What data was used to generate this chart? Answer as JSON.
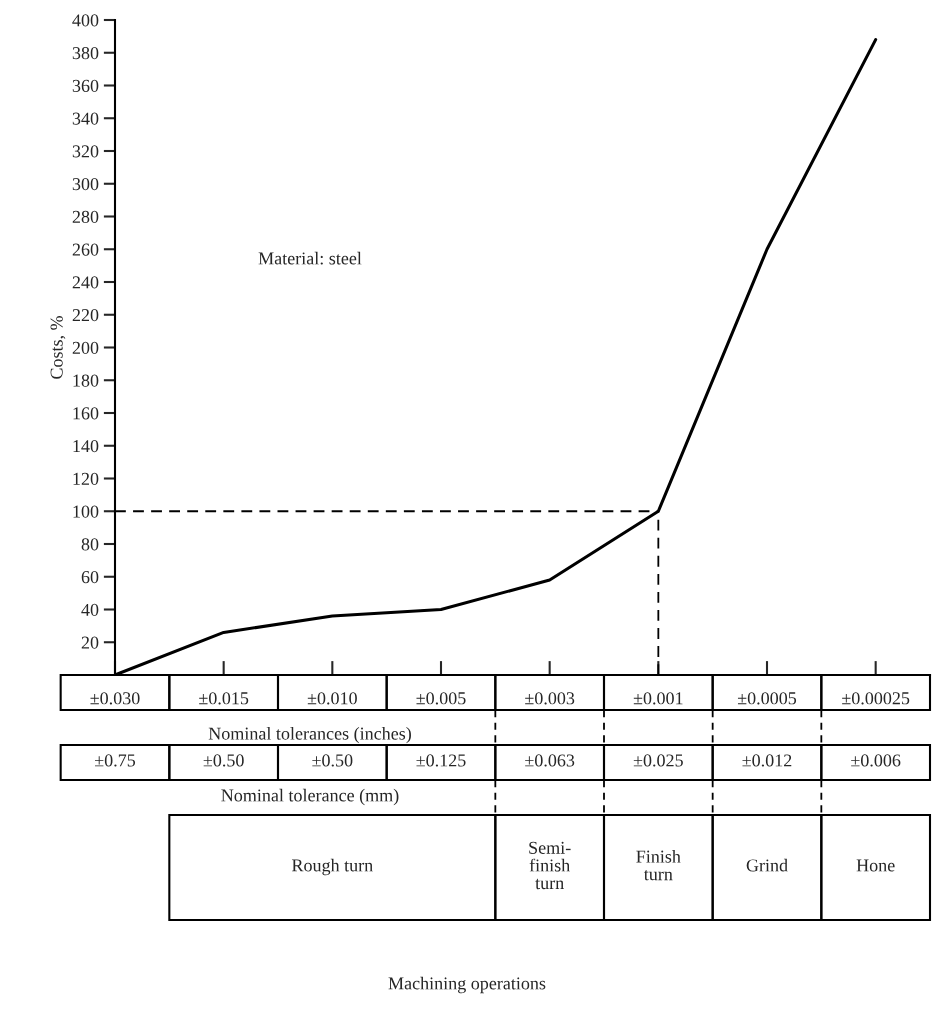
{
  "chart_data": {
    "type": "line",
    "categories": [
      "±0.030",
      "±0.015",
      "±0.010",
      "±0.005",
      "±0.003",
      "±0.001",
      "±0.0005",
      "±0.00025"
    ],
    "series": [
      {
        "color": "#000000",
        "values": [
          0,
          26,
          36,
          40,
          58,
          100,
          260,
          388
        ]
      }
    ],
    "xlabel": "Nominal tolerances (inches)",
    "ylabel": "Costs, %",
    "ylim": [
      0,
      400
    ],
    "yticks": [
      20,
      40,
      60,
      80,
      100,
      120,
      140,
      160,
      180,
      200,
      220,
      240,
      260,
      280,
      300,
      320,
      340,
      360,
      380,
      400
    ],
    "ref_lines": [
      {
        "axis": "y",
        "value": 100,
        "line_style": "dashed",
        "color": "#000000"
      },
      {
        "axis": "x",
        "value": "±0.001",
        "line_style": "dashed",
        "color": "#000000"
      }
    ],
    "grid": false,
    "legend": false,
    "marker": "none",
    "line_style": "solid",
    "annotations": [
      "Material: steel",
      "±0.75",
      "±0.50",
      "±0.50",
      "±0.125",
      "±0.063",
      "±0.025",
      "±0.012",
      "±0.006",
      "Nominal tolerance (mm)",
      "Rough turn",
      "Semi-\nfinish\nturn",
      "Finish\nturn",
      "Grind",
      "Hone",
      "Machining operations"
    ]
  }
}
